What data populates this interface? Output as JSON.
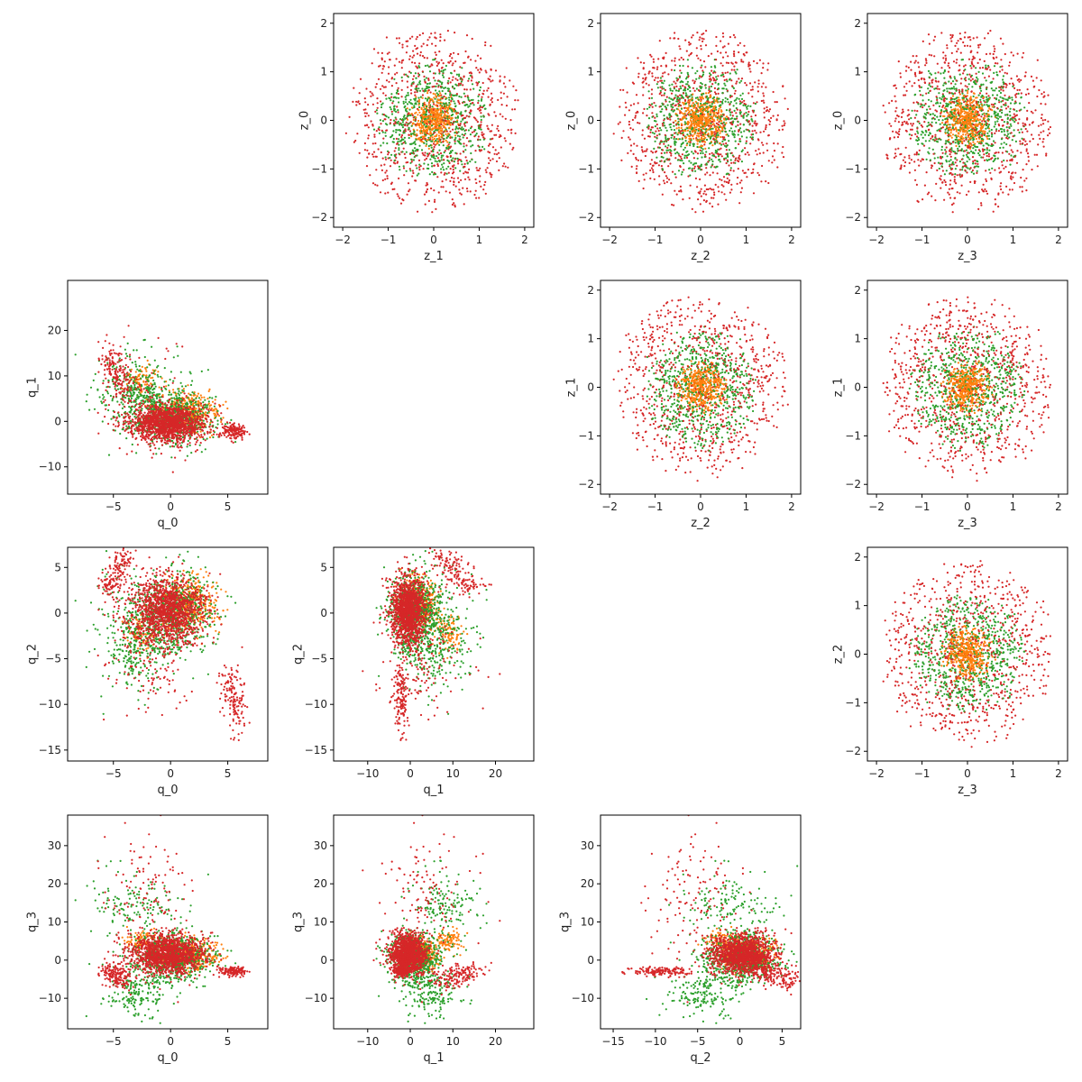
{
  "chart_data": {
    "type": "scatter",
    "layout": "4x4 pair grid (upper triangle: z-space, lower triangle: q-space, diagonal empty)",
    "colors": {
      "inner": "#ff7f0e",
      "middle": "#2ca02c",
      "outer": "#d62728"
    },
    "series": [
      {
        "role": "inner ring",
        "color": "#ff7f0e",
        "z_radius": [
          0,
          0.65
        ]
      },
      {
        "role": "middle ring",
        "color": "#2ca02c",
        "z_radius": [
          0.65,
          1.35
        ]
      },
      {
        "role": "outer ring",
        "color": "#d62728",
        "z_radius": [
          1.35,
          2.0
        ]
      }
    ],
    "panels": [
      {
        "row": 0,
        "col": 1,
        "space": "z",
        "xlabel": "z_1",
        "ylabel": "z_0",
        "xlim": [
          -2.2,
          2.2
        ],
        "ylim": [
          -2.2,
          2.2
        ],
        "xticks": [
          {
            "v": -2,
            "t": "−2"
          },
          {
            "v": -1,
            "t": "−1"
          },
          {
            "v": 0,
            "t": "0"
          },
          {
            "v": 1,
            "t": "1"
          },
          {
            "v": 2,
            "t": "2"
          }
        ],
        "yticks": [
          {
            "v": -2,
            "t": "−2"
          },
          {
            "v": -1,
            "t": "−1"
          },
          {
            "v": 0,
            "t": "0"
          },
          {
            "v": 1,
            "t": "1"
          },
          {
            "v": 2,
            "t": "2"
          }
        ]
      },
      {
        "row": 0,
        "col": 2,
        "space": "z",
        "xlabel": "z_2",
        "ylabel": "z_0",
        "xlim": [
          -2.2,
          2.2
        ],
        "ylim": [
          -2.2,
          2.2
        ],
        "xticks": [
          {
            "v": -2,
            "t": "−2"
          },
          {
            "v": -1,
            "t": "−1"
          },
          {
            "v": 0,
            "t": "0"
          },
          {
            "v": 1,
            "t": "1"
          },
          {
            "v": 2,
            "t": "2"
          }
        ],
        "yticks": [
          {
            "v": -2,
            "t": "−2"
          },
          {
            "v": -1,
            "t": "−1"
          },
          {
            "v": 0,
            "t": "0"
          },
          {
            "v": 1,
            "t": "1"
          },
          {
            "v": 2,
            "t": "2"
          }
        ]
      },
      {
        "row": 0,
        "col": 3,
        "space": "z",
        "xlabel": "z_3",
        "ylabel": "z_0",
        "xlim": [
          -2.2,
          2.2
        ],
        "ylim": [
          -2.2,
          2.2
        ],
        "xticks": [
          {
            "v": -2,
            "t": "−2"
          },
          {
            "v": -1,
            "t": "−1"
          },
          {
            "v": 0,
            "t": "0"
          },
          {
            "v": 1,
            "t": "1"
          },
          {
            "v": 2,
            "t": "2"
          }
        ],
        "yticks": [
          {
            "v": -2,
            "t": "−2"
          },
          {
            "v": -1,
            "t": "−1"
          },
          {
            "v": 0,
            "t": "0"
          },
          {
            "v": 1,
            "t": "1"
          },
          {
            "v": 2,
            "t": "2"
          }
        ]
      },
      {
        "row": 1,
        "col": 2,
        "space": "z",
        "xlabel": "z_2",
        "ylabel": "z_1",
        "xlim": [
          -2.2,
          2.2
        ],
        "ylim": [
          -2.2,
          2.2
        ],
        "xticks": [
          {
            "v": -2,
            "t": "−2"
          },
          {
            "v": -1,
            "t": "−1"
          },
          {
            "v": 0,
            "t": "0"
          },
          {
            "v": 1,
            "t": "1"
          },
          {
            "v": 2,
            "t": "2"
          }
        ],
        "yticks": [
          {
            "v": -2,
            "t": "−2"
          },
          {
            "v": -1,
            "t": "−1"
          },
          {
            "v": 0,
            "t": "0"
          },
          {
            "v": 1,
            "t": "1"
          },
          {
            "v": 2,
            "t": "2"
          }
        ]
      },
      {
        "row": 1,
        "col": 3,
        "space": "z",
        "xlabel": "z_3",
        "ylabel": "z_1",
        "xlim": [
          -2.2,
          2.2
        ],
        "ylim": [
          -2.2,
          2.2
        ],
        "xticks": [
          {
            "v": -2,
            "t": "−2"
          },
          {
            "v": -1,
            "t": "−1"
          },
          {
            "v": 0,
            "t": "0"
          },
          {
            "v": 1,
            "t": "1"
          },
          {
            "v": 2,
            "t": "2"
          }
        ],
        "yticks": [
          {
            "v": -2,
            "t": "−2"
          },
          {
            "v": -1,
            "t": "−1"
          },
          {
            "v": 0,
            "t": "0"
          },
          {
            "v": 1,
            "t": "1"
          },
          {
            "v": 2,
            "t": "2"
          }
        ]
      },
      {
        "row": 2,
        "col": 3,
        "space": "z",
        "xlabel": "z_3",
        "ylabel": "z_2",
        "xlim": [
          -2.2,
          2.2
        ],
        "ylim": [
          -2.2,
          2.2
        ],
        "xticks": [
          {
            "v": -2,
            "t": "−2"
          },
          {
            "v": -1,
            "t": "−1"
          },
          {
            "v": 0,
            "t": "0"
          },
          {
            "v": 1,
            "t": "1"
          },
          {
            "v": 2,
            "t": "2"
          }
        ],
        "yticks": [
          {
            "v": -2,
            "t": "−2"
          },
          {
            "v": -1,
            "t": "−1"
          },
          {
            "v": 0,
            "t": "0"
          },
          {
            "v": 1,
            "t": "1"
          },
          {
            "v": 2,
            "t": "2"
          }
        ]
      },
      {
        "row": 1,
        "col": 0,
        "space": "q",
        "xi": 0,
        "yi": 1,
        "xlabel": "q_0",
        "ylabel": "q_1",
        "xlim": [
          -9,
          8.5
        ],
        "ylim": [
          -16,
          31
        ],
        "xticks": [
          {
            "v": -5,
            "t": "−5"
          },
          {
            "v": 0,
            "t": "0"
          },
          {
            "v": 5,
            "t": "5"
          }
        ],
        "yticks": [
          {
            "v": -10,
            "t": "−10"
          },
          {
            "v": 0,
            "t": "0"
          },
          {
            "v": 10,
            "t": "10"
          },
          {
            "v": 20,
            "t": "20"
          }
        ]
      },
      {
        "row": 2,
        "col": 0,
        "space": "q",
        "xi": 0,
        "yi": 2,
        "xlabel": "q_0",
        "ylabel": "q_2",
        "xlim": [
          -9,
          8.5
        ],
        "ylim": [
          -16.2,
          7.2
        ],
        "xticks": [
          {
            "v": -5,
            "t": "−5"
          },
          {
            "v": 0,
            "t": "0"
          },
          {
            "v": 5,
            "t": "5"
          }
        ],
        "yticks": [
          {
            "v": -15,
            "t": "−15"
          },
          {
            "v": -10,
            "t": "−10"
          },
          {
            "v": -5,
            "t": "−5"
          },
          {
            "v": 0,
            "t": "0"
          },
          {
            "v": 5,
            "t": "5"
          }
        ]
      },
      {
        "row": 2,
        "col": 1,
        "space": "q",
        "xi": 1,
        "yi": 2,
        "xlabel": "q_1",
        "ylabel": "q_2",
        "xlim": [
          -18,
          29
        ],
        "ylim": [
          -16.2,
          7.2
        ],
        "xticks": [
          {
            "v": -10,
            "t": "−10"
          },
          {
            "v": 0,
            "t": "0"
          },
          {
            "v": 10,
            "t": "10"
          },
          {
            "v": 20,
            "t": "20"
          }
        ],
        "yticks": [
          {
            "v": -15,
            "t": "−15"
          },
          {
            "v": -10,
            "t": "−10"
          },
          {
            "v": -5,
            "t": "−5"
          },
          {
            "v": 0,
            "t": "0"
          },
          {
            "v": 5,
            "t": "5"
          }
        ]
      },
      {
        "row": 3,
        "col": 0,
        "space": "q",
        "xi": 0,
        "yi": 3,
        "xlabel": "q_0",
        "ylabel": "q_3",
        "xlim": [
          -9,
          8.5
        ],
        "ylim": [
          -18,
          38
        ],
        "xticks": [
          {
            "v": -5,
            "t": "−5"
          },
          {
            "v": 0,
            "t": "0"
          },
          {
            "v": 5,
            "t": "5"
          }
        ],
        "yticks": [
          {
            "v": -10,
            "t": "−10"
          },
          {
            "v": 0,
            "t": "0"
          },
          {
            "v": 10,
            "t": "10"
          },
          {
            "v": 20,
            "t": "20"
          },
          {
            "v": 30,
            "t": "30"
          }
        ]
      },
      {
        "row": 3,
        "col": 1,
        "space": "q",
        "xi": 1,
        "yi": 3,
        "xlabel": "q_1",
        "ylabel": "q_3",
        "xlim": [
          -18,
          29
        ],
        "ylim": [
          -18,
          38
        ],
        "xticks": [
          {
            "v": -10,
            "t": "−10"
          },
          {
            "v": 0,
            "t": "0"
          },
          {
            "v": 10,
            "t": "10"
          },
          {
            "v": 20,
            "t": "20"
          }
        ],
        "yticks": [
          {
            "v": -10,
            "t": "−10"
          },
          {
            "v": 0,
            "t": "0"
          },
          {
            "v": 10,
            "t": "10"
          },
          {
            "v": 20,
            "t": "20"
          },
          {
            "v": 30,
            "t": "30"
          }
        ]
      },
      {
        "row": 3,
        "col": 2,
        "space": "q",
        "xi": 2,
        "yi": 3,
        "xlabel": "q_2",
        "ylabel": "q_3",
        "xlim": [
          -16.5,
          7.2
        ],
        "ylim": [
          -18,
          38
        ],
        "xticks": [
          {
            "v": -15,
            "t": "−15"
          },
          {
            "v": -10,
            "t": "−10"
          },
          {
            "v": -5,
            "t": "−5"
          },
          {
            "v": 0,
            "t": "0"
          },
          {
            "v": 5,
            "t": "5"
          }
        ],
        "yticks": [
          {
            "v": -10,
            "t": "−10"
          },
          {
            "v": 0,
            "t": "0"
          },
          {
            "v": 10,
            "t": "10"
          },
          {
            "v": 20,
            "t": "20"
          },
          {
            "v": 30,
            "t": "30"
          }
        ]
      }
    ],
    "q_mixture": [
      {
        "color": "#d62728",
        "n": 1300,
        "mean": [
          -0.2,
          -0.5,
          0.3,
          1.5
        ],
        "sd": [
          1.6,
          2.0,
          1.8,
          2.5
        ]
      },
      {
        "color": "#2ca02c",
        "n": 650,
        "mean": [
          0.3,
          0.8,
          0.0,
          0.5
        ],
        "sd": [
          1.8,
          3.0,
          2.2,
          3.0
        ]
      },
      {
        "color": "#ff7f0e",
        "n": 420,
        "mean": [
          1.5,
          2.0,
          1.0,
          1.5
        ],
        "sd": [
          1.2,
          2.0,
          1.5,
          2.0
        ]
      },
      {
        "color": "#d62728",
        "n": 160,
        "mean": [
          -5.5,
          14,
          2.5,
          -3
        ],
        "sd": [
          1.5,
          6,
          1.5,
          4
        ],
        "dir": [
          1,
          -4,
          2.5,
          -1.5
        ]
      },
      {
        "color": "#d62728",
        "n": 130,
        "mean": [
          -2,
          3,
          -6,
          17
        ],
        "sd": [
          2,
          6,
          3,
          9
        ]
      },
      {
        "color": "#2ca02c",
        "n": 170,
        "mean": [
          -3,
          5,
          -4,
          -9
        ],
        "sd": [
          1.5,
          3,
          2.5,
          3
        ]
      },
      {
        "color": "#ff7f0e",
        "n": 90,
        "mean": [
          -2.5,
          9,
          -2,
          5
        ],
        "sd": [
          0.8,
          1.5,
          1,
          1.5
        ]
      },
      {
        "color": "#2ca02c",
        "n": 150,
        "mean": [
          -3,
          8,
          -1,
          14
        ],
        "sd": [
          2,
          4,
          3,
          5
        ]
      },
      {
        "color": "#d62728",
        "n": 140,
        "mean": [
          5,
          -2,
          -7,
          -3
        ],
        "sd": [
          1.5,
          3,
          4,
          2
        ],
        "dir": [
          0.6,
          -0.2,
          -3,
          0.1
        ]
      }
    ]
  }
}
